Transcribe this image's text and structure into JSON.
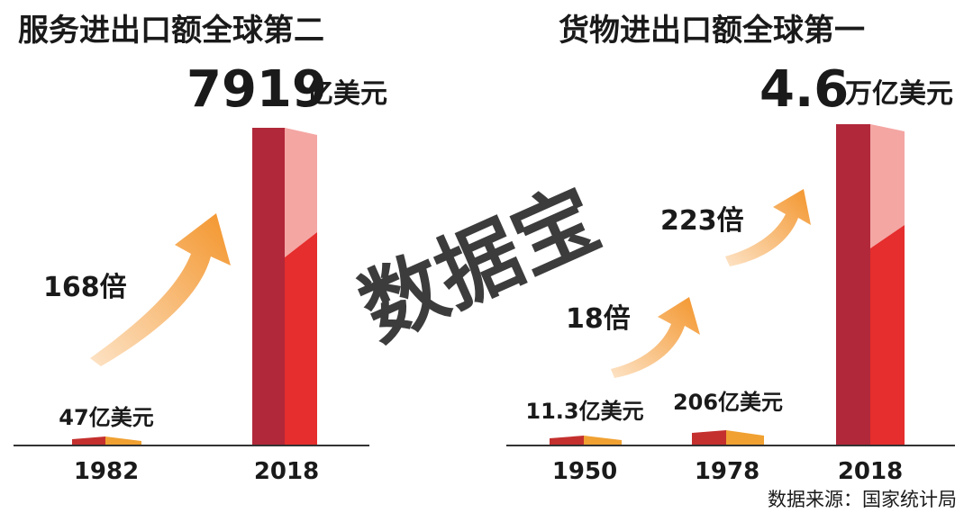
{
  "chart_data": [
    {
      "type": "bar",
      "title": "服务进出口额全球第二",
      "categories": [
        "1982",
        "2018"
      ],
      "values": [
        47,
        7919
      ],
      "unit": "亿美元",
      "labels": {
        "small_value": "47亿美元",
        "big_number": "7919",
        "big_unit": "亿美元"
      },
      "growth": [
        {
          "from": "1982",
          "to": "2018",
          "label": "168倍"
        }
      ]
    },
    {
      "type": "bar",
      "title": "货物进出口额全球第一",
      "categories": [
        "1950",
        "1978",
        "2018"
      ],
      "values": [
        11.3,
        206,
        46000
      ],
      "unit": "亿美元",
      "labels": {
        "small_value_1": "11.3亿美元",
        "small_value_2": "206亿美元",
        "big_number": "4.6",
        "big_unit": "万亿美元"
      },
      "growth": [
        {
          "from": "1950",
          "to": "1978",
          "label": "18倍"
        },
        {
          "from": "1978",
          "to": "2018",
          "label": "223倍"
        }
      ]
    }
  ],
  "watermark": "数据宝",
  "source": "数据来源：国家统计局",
  "colors": {
    "bar_dark": "#b1283a",
    "bar_red": "#e52e2d",
    "bar_pink": "#f4a6a3",
    "bar_top": "#f7c0bd",
    "small_dark": "#c4302e",
    "small_orange": "#f0a132",
    "arrow_light": "#fde3c6",
    "arrow_dark": "#f3952c",
    "watermark": "#f6b8bd",
    "axis": "#333333"
  }
}
